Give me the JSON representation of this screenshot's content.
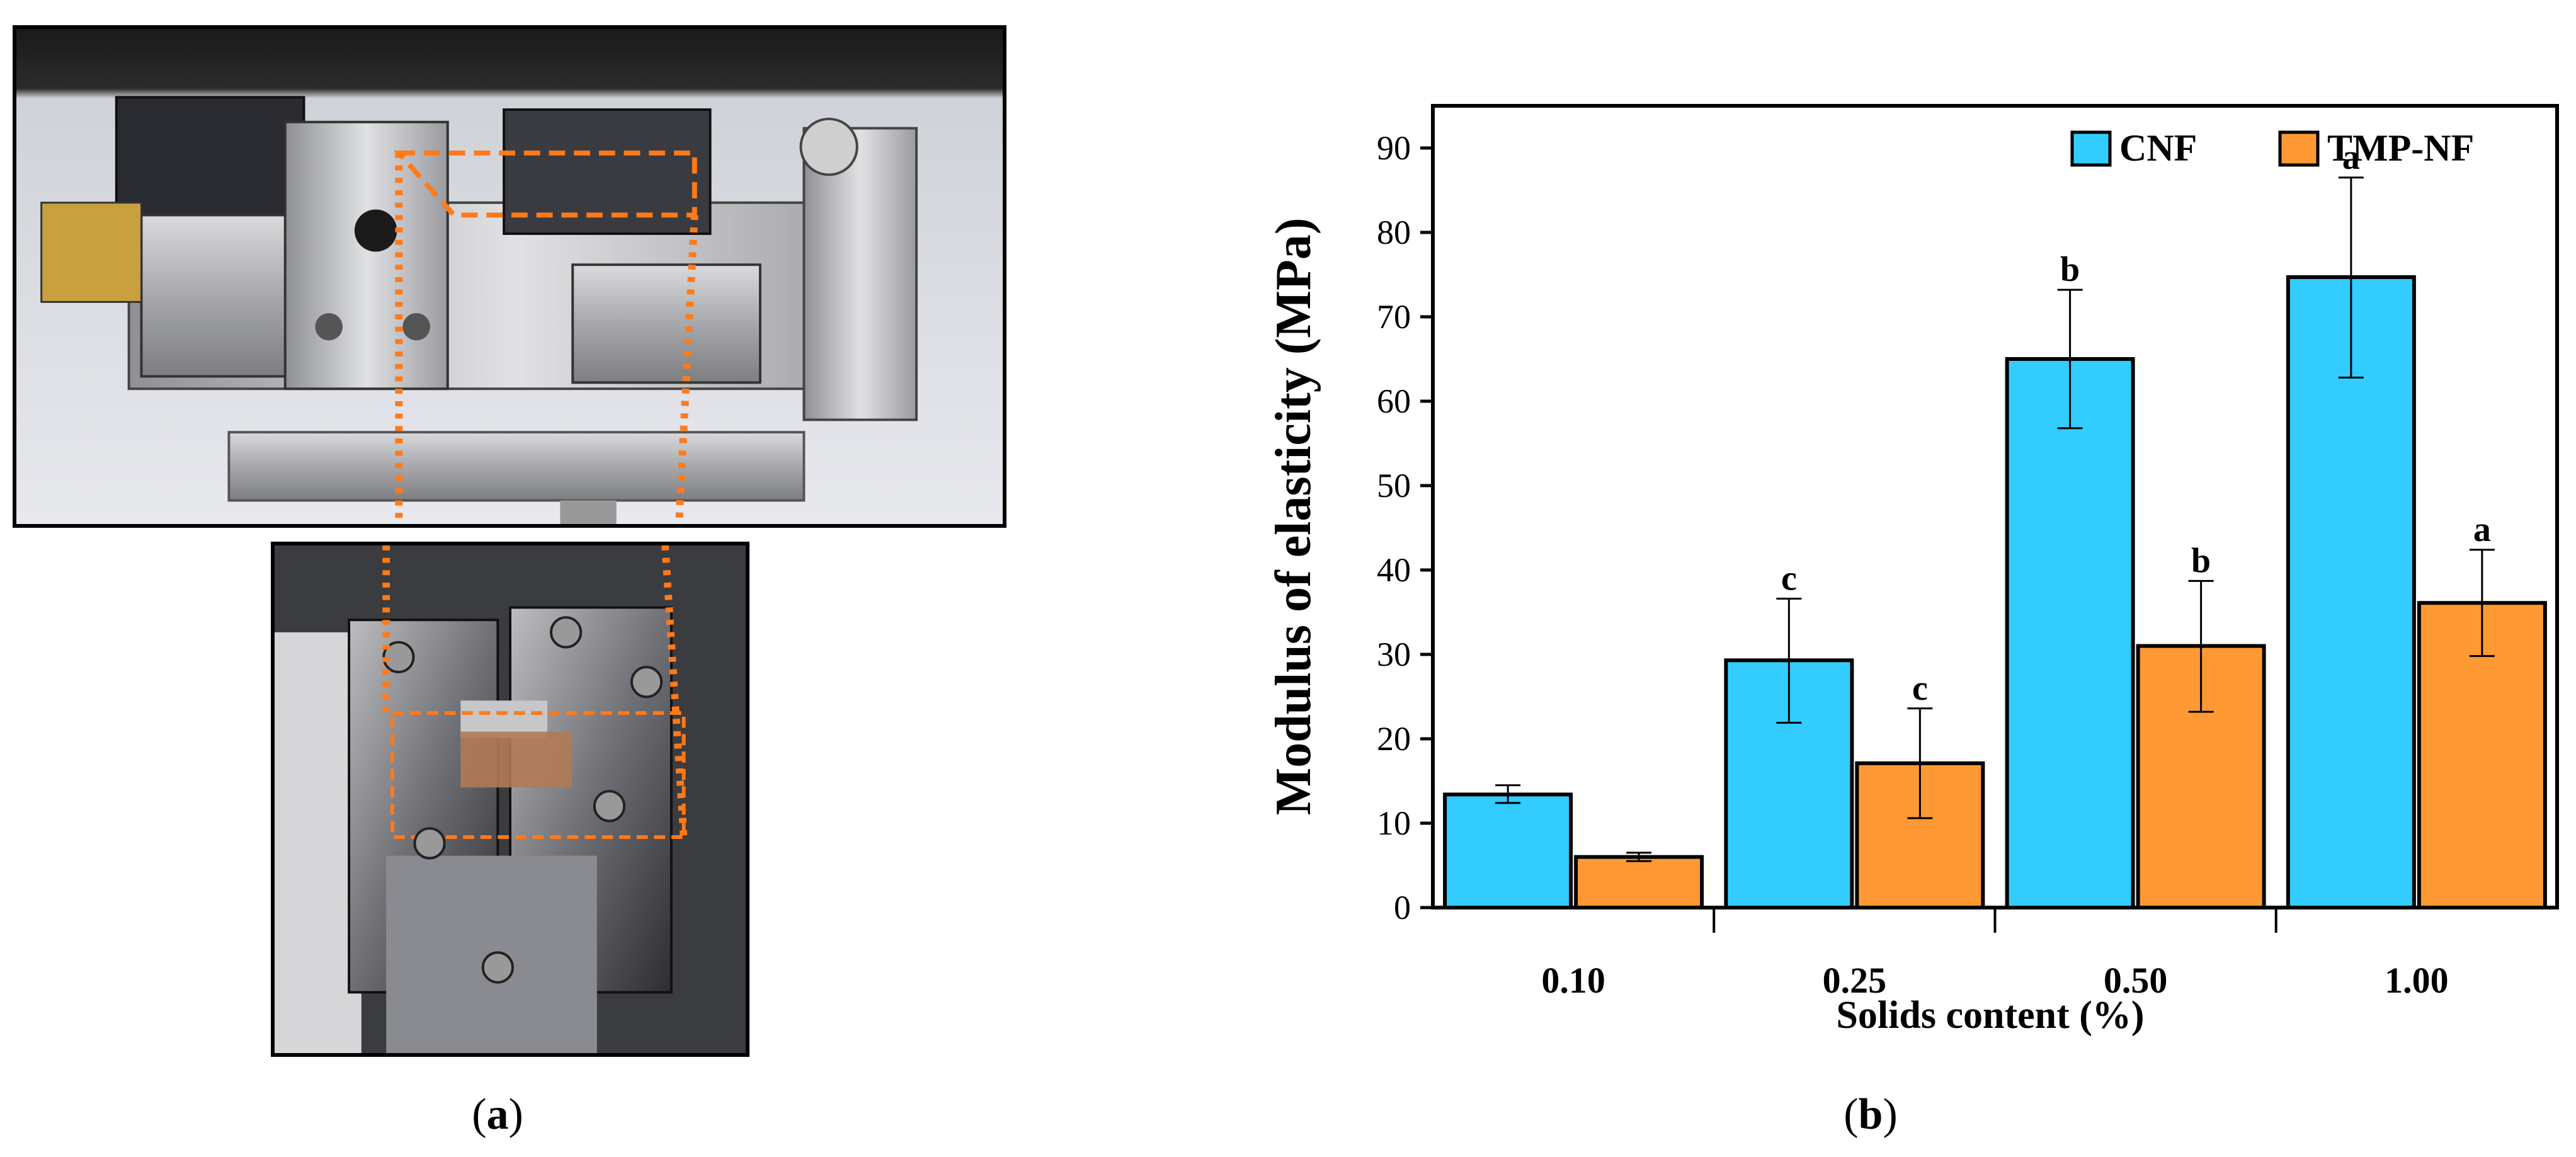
{
  "panel_a": {
    "caption_label": "a"
  },
  "panel_b": {
    "caption_label": "b"
  },
  "chart_data": {
    "type": "bar",
    "xlabel": "Solids content (%)",
    "ylabel": "Modulus of elasticity (MPa)",
    "ylim": [
      0,
      95
    ],
    "yticks": [
      "0",
      "10",
      "20",
      "30",
      "40",
      "50",
      "60",
      "70",
      "80",
      "90"
    ],
    "categories": [
      "0.10",
      "0.25",
      "0.50",
      "1.00"
    ],
    "legend_position": "top-right",
    "grid": false,
    "series": [
      {
        "name": "CNF",
        "color": "#33ccff",
        "values": [
          13.4,
          29.3,
          65.0,
          74.7
        ],
        "err_low": [
          12.4,
          21.9,
          56.8,
          62.8
        ],
        "err_high": [
          14.5,
          36.6,
          73.2,
          86.5
        ],
        "labels": [
          "",
          "c",
          "b",
          "a"
        ]
      },
      {
        "name": "TMP-NF",
        "color": "#ff9933",
        "values": [
          6.0,
          17.1,
          31.0,
          36.1
        ],
        "err_low": [
          5.5,
          10.6,
          23.2,
          29.8
        ],
        "err_high": [
          6.5,
          23.6,
          38.7,
          42.4
        ],
        "labels": [
          "",
          "c",
          "b",
          "a"
        ]
      }
    ]
  }
}
